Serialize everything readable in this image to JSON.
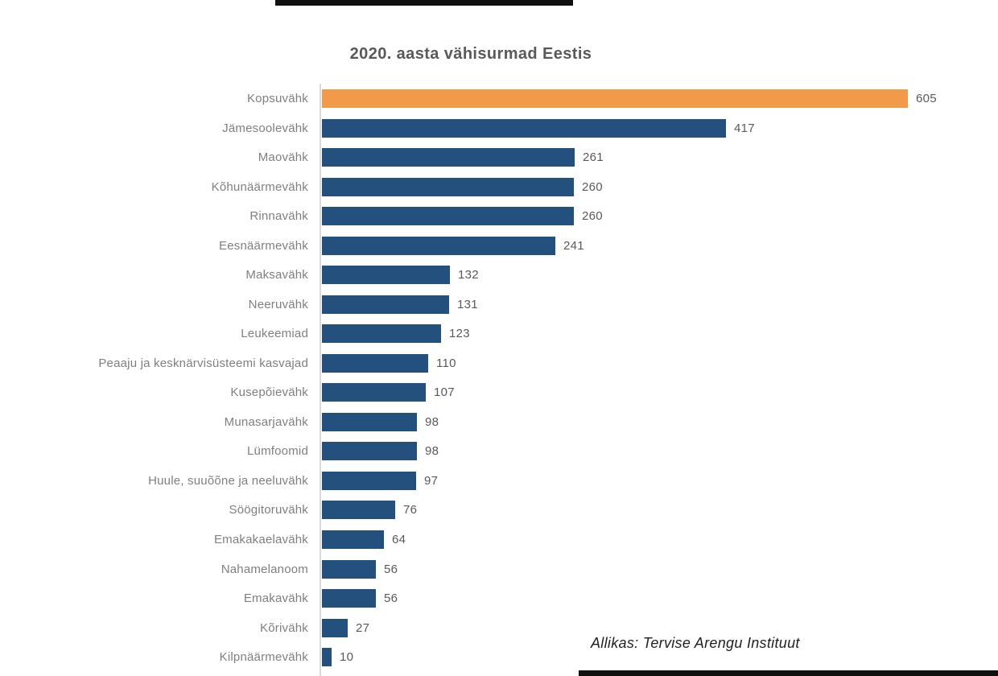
{
  "page": {
    "background": "#ffffff"
  },
  "chart_data": {
    "type": "bar",
    "orientation": "horizontal",
    "title": "2020. aasta vähisurmad Eestis",
    "source": "Allikas: Tervise Arengu Instituut",
    "categories": [
      "Kopsuvähk",
      "Jämesoolevähk",
      "Maovähk",
      "Kõhunäärmevähk",
      "Rinnavähk",
      "Eesnäärmevähk",
      "Maksavähk",
      "Neeruvähk",
      "Leukeemiad",
      "Peaaju ja kesknärvisüsteemi kasvajad",
      "Kusepõievähk",
      "Munasarjavähk",
      "Lümfoomid",
      "Huule, suuõõne ja neeluvähk",
      "Söögitoruvähk",
      "Emakakaelavähk",
      "Nahamelanoom",
      "Emakavähk",
      "Kõrivähk",
      "Kilpnäärmevähk"
    ],
    "values": [
      605,
      417,
      261,
      260,
      260,
      241,
      132,
      131,
      123,
      110,
      107,
      98,
      98,
      97,
      76,
      64,
      56,
      56,
      27,
      10
    ],
    "value_labels": [
      "605",
      "417",
      "261",
      "260",
      "260",
      "241",
      "132",
      "131",
      "123",
      "110",
      "107",
      "98",
      "98",
      "97",
      "76",
      "64",
      "56",
      "56",
      "27",
      "10"
    ],
    "highlight_index": 0,
    "highlight_color": "#f39a4a",
    "bar_color": "#24507e",
    "title_color": "#595959",
    "category_label_color": "#7f7f7f",
    "value_label_color": "#595959",
    "axis_line_color": "#d9d9d9",
    "xlim": [
      0,
      620
    ],
    "grid": "off",
    "legend": "none"
  }
}
